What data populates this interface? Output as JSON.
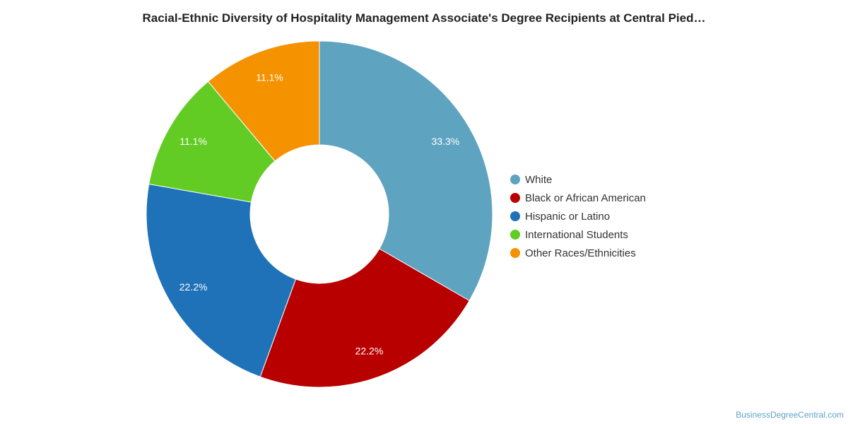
{
  "header": {
    "title": "Racial-Ethnic Diversity of Hospitality Management Associate's Degree Recipients at Central Pied…"
  },
  "chart_data": {
    "type": "pie",
    "variant": "donut",
    "categories": [
      "White",
      "Black or African American",
      "Hispanic or Latino",
      "International Students",
      "Other Races/Ethnicities"
    ],
    "values": [
      33.3,
      22.2,
      22.2,
      11.1,
      11.1
    ],
    "value_labels": [
      "33.3%",
      "22.2%",
      "22.2%",
      "11.1%",
      "11.1%"
    ],
    "colors": [
      "#5ea3c0",
      "#b80000",
      "#1f72b8",
      "#62cc24",
      "#f59200"
    ],
    "legend_position": "right",
    "start_angle": "top, clockwise"
  },
  "footer": {
    "source": "BusinessDegreeCentral.com"
  }
}
